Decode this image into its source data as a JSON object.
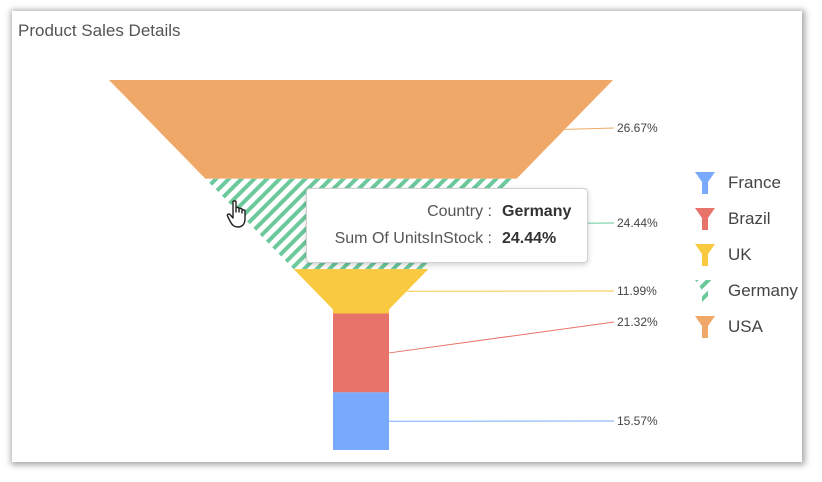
{
  "chart_data": {
    "type": "funnel",
    "title": "Product Sales Details",
    "stages": [
      {
        "name": "USA",
        "percent_label": "26.67%",
        "value": 26.67,
        "color": "#F0A868",
        "pattern": "solid"
      },
      {
        "name": "Germany",
        "percent_label": "24.44%",
        "value": 24.44,
        "color": "#6CC99C",
        "pattern": "hatched"
      },
      {
        "name": "UK",
        "percent_label": "11.99%",
        "value": 11.99,
        "color": "#F9C940",
        "pattern": "solid"
      },
      {
        "name": "Brazil",
        "percent_label": "21.32%",
        "value": 21.32,
        "color": "#E8736A",
        "pattern": "solid"
      },
      {
        "name": "France",
        "percent_label": "15.57%",
        "value": 15.57,
        "color": "#78A9FB",
        "pattern": "solid"
      }
    ],
    "legend": {
      "placement": "right",
      "entries": [
        "France",
        "Brazil",
        "UK",
        "Germany",
        "USA"
      ]
    }
  },
  "tooltip": {
    "country_label": "Country :",
    "country_value": "Germany",
    "metric_label": "Sum Of UnitsInStock :",
    "metric_value": "24.44%"
  }
}
